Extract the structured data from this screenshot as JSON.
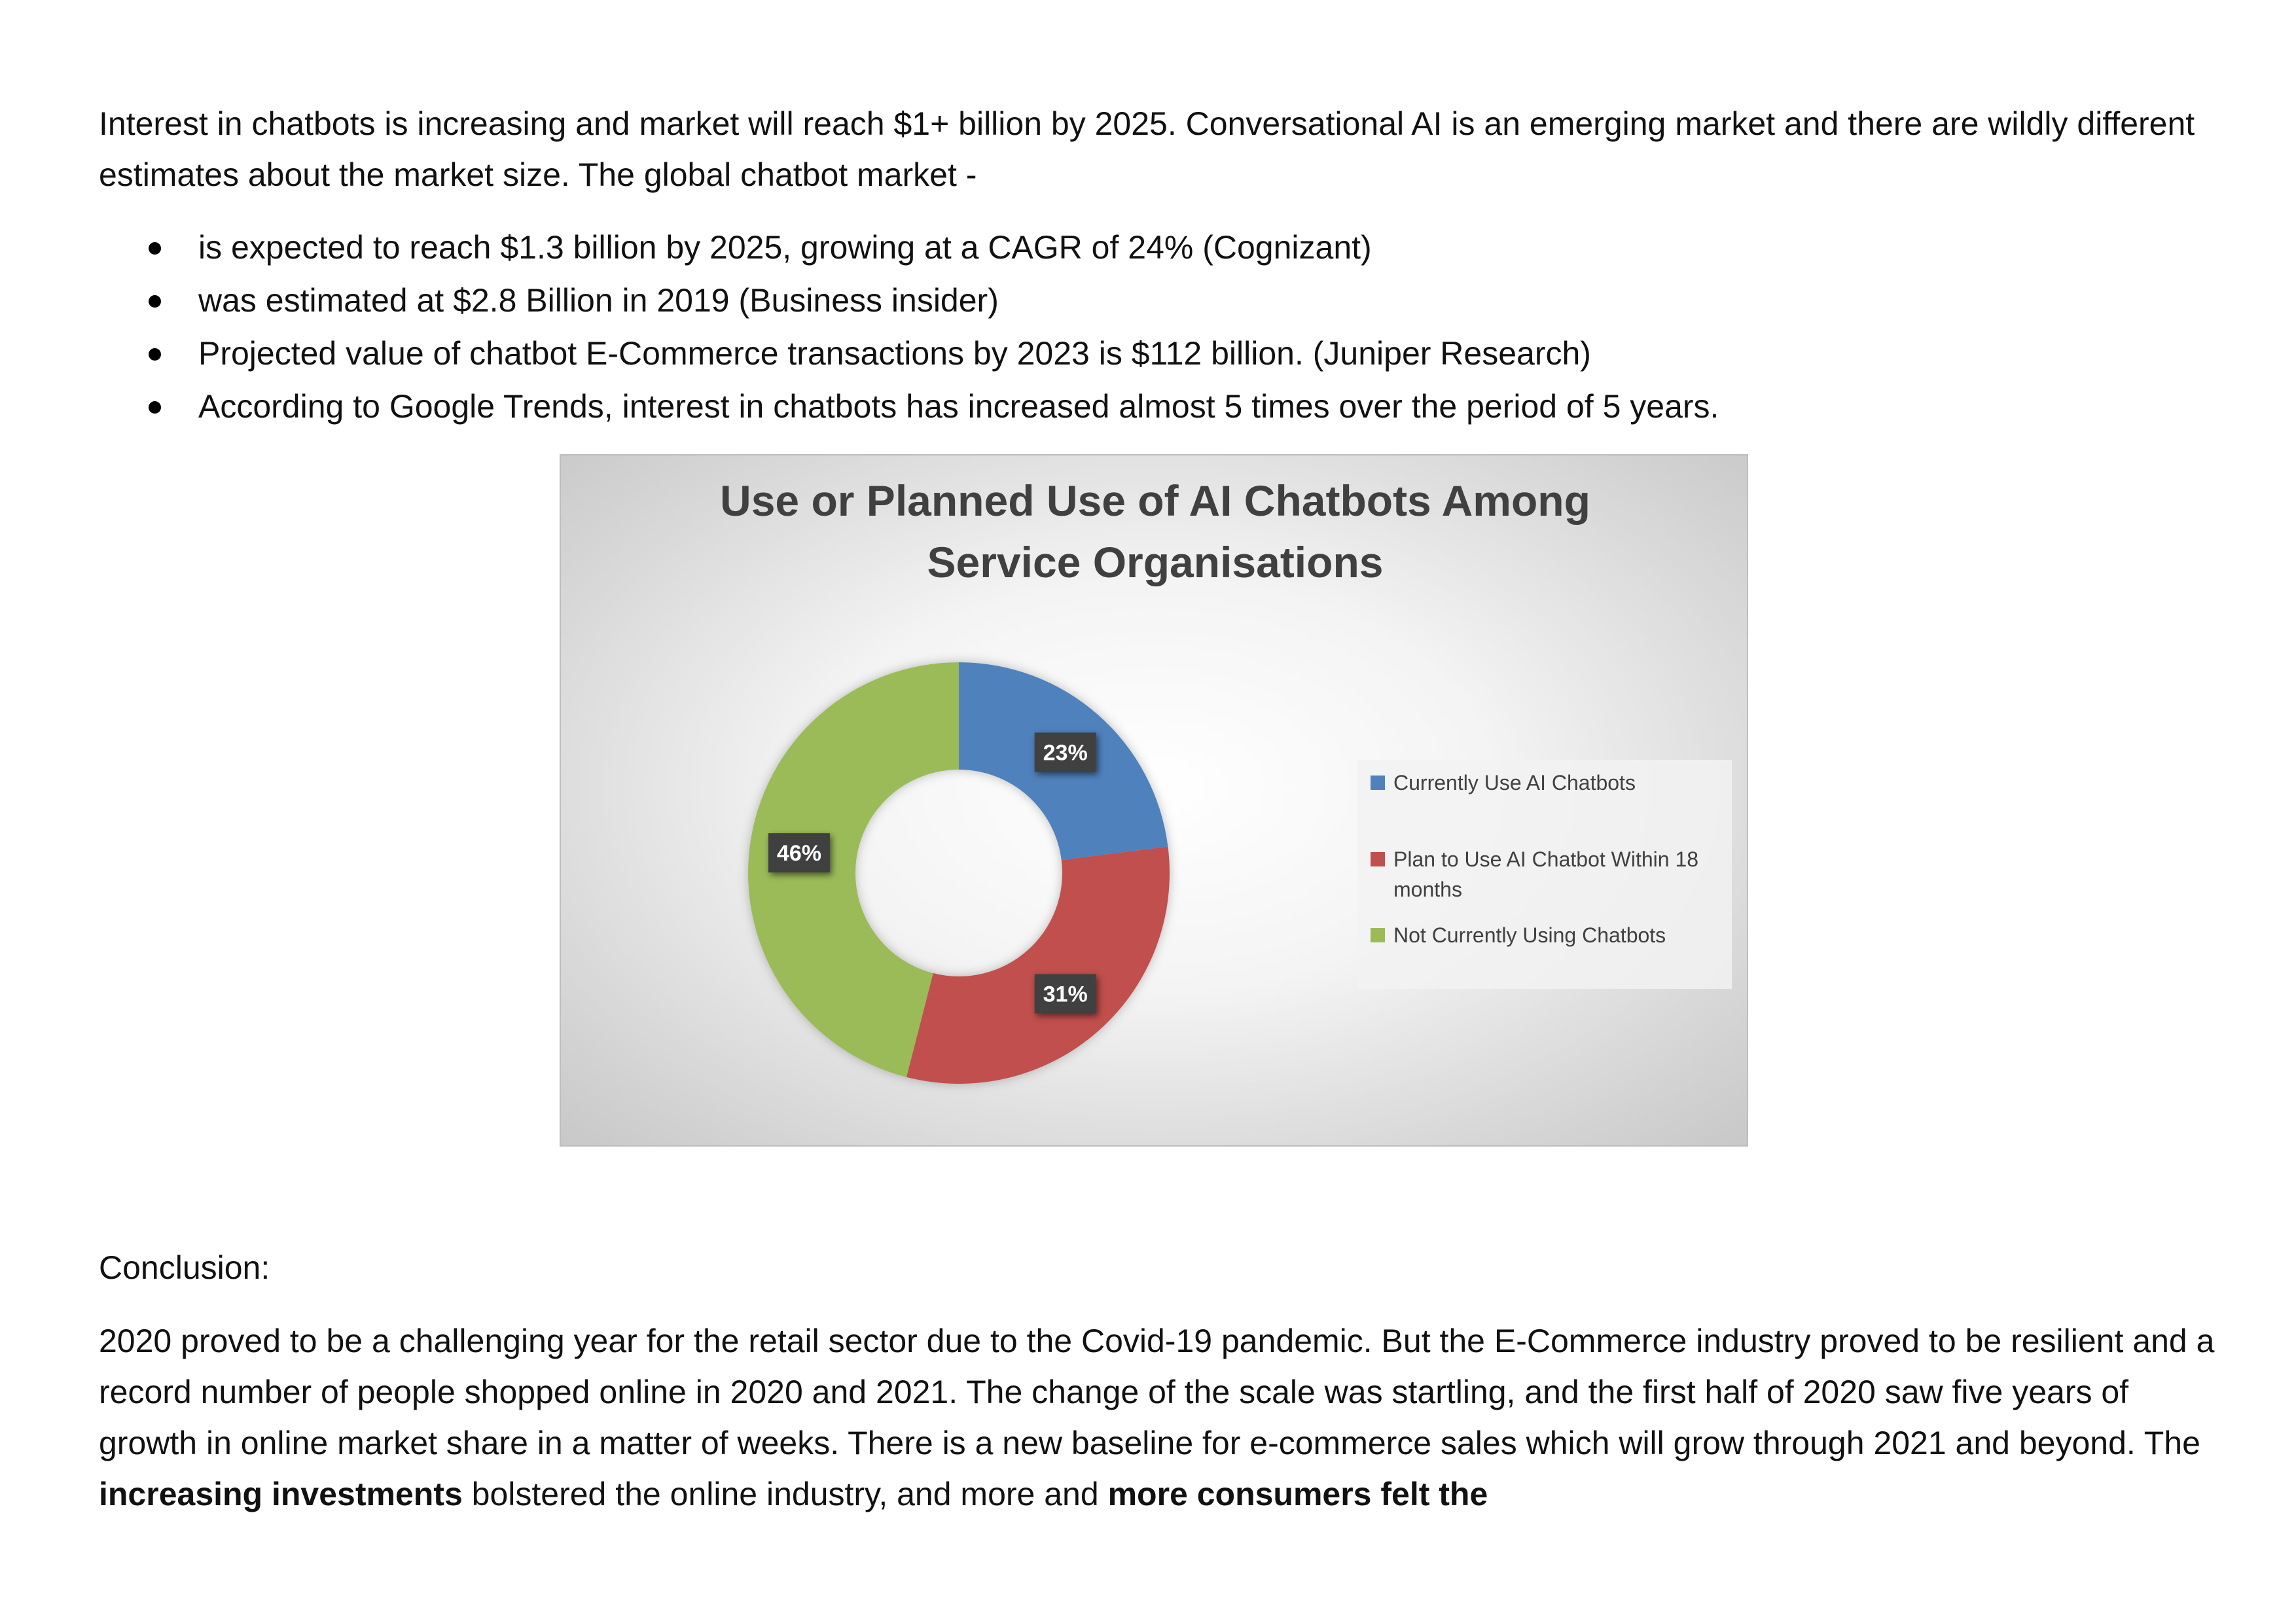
{
  "intro": "Interest in chatbots is increasing and market will reach $1+ billion by 2025. Conversational AI is an emerging market and there are wildly different estimates about the market size. The global chatbot market -",
  "bullets": [
    "is expected to reach $1.3 billion by 2025, growing at a CAGR of 24% (Cognizant)",
    "was estimated at $2.8 Billion in 2019 (Business insider)",
    "Projected value of chatbot E-Commerce transactions by 2023 is $112 billion. (Juniper Research)",
    "According to Google Trends, interest in chatbots has increased almost 5 times over the period of 5 years."
  ],
  "chart_data": {
    "type": "pie",
    "variant": "doughnut",
    "title": "Use or Planned Use of AI Chatbots Among Service Organisations",
    "categories": [
      "Currently Use AI Chatbots",
      "Plan to Use AI Chatbot Within 18 months",
      "Not Currently Using Chatbots"
    ],
    "values": [
      23,
      31,
      46
    ],
    "labels": [
      "23%",
      "31%",
      "46%"
    ],
    "colors": [
      "#4f81bd",
      "#c0504d",
      "#9bbb59"
    ],
    "legend_position": "right"
  },
  "conclusion_heading": "Conclusion:",
  "conclusion": {
    "t1": "2020 proved to be a challenging year for the retail sector due to the Covid-19 pandemic. But the E-Commerce industry proved to be resilient and a record number of people shopped online in 2020 and 2021. The change of the scale was startling, and the first half of 2020 saw five years of growth in online market share in a matter of weeks. There is a new baseline for e-commerce sales which will grow through 2021 and beyond. The ",
    "b1": "increasing investments",
    "t2": " bolstered the online industry, and more and ",
    "b2": "more consumers felt the"
  }
}
